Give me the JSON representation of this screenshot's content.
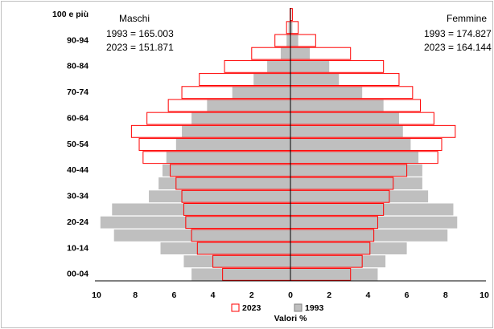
{
  "chart_data": {
    "type": "pyramid",
    "categories": [
      "00-04",
      null,
      "10-14",
      null,
      "20-24",
      null,
      "30-34",
      null,
      "40-44",
      null,
      "50-54",
      null,
      "60-64",
      null,
      "70-74",
      null,
      "80-84",
      null,
      "90-94",
      null,
      "100 e più"
    ],
    "xlim": [
      0,
      10
    ],
    "xticks": [
      0,
      2,
      4,
      6,
      8,
      10
    ],
    "xlabel": "Valori %",
    "sides": [
      {
        "label": "Maschi",
        "notes": [
          "1993 = 165.003",
          "2023 = 151.871"
        ]
      },
      {
        "label": "Femmine",
        "notes": [
          "1993 = 174.827",
          "2023 = 164.144"
        ]
      }
    ],
    "series": [
      {
        "name": "2023",
        "color": "#ff0000",
        "filled": false,
        "left": [
          3.5,
          4.0,
          4.8,
          5.1,
          5.4,
          5.5,
          5.6,
          5.9,
          6.2,
          7.6,
          7.8,
          8.2,
          7.4,
          6.3,
          5.6,
          4.7,
          3.4,
          2.0,
          0.8,
          0.2,
          0.02
        ],
        "right": [
          3.1,
          3.7,
          4.1,
          4.3,
          4.5,
          4.8,
          5.1,
          5.3,
          6.0,
          7.6,
          7.8,
          8.5,
          7.4,
          6.7,
          6.3,
          5.6,
          4.8,
          3.1,
          1.3,
          0.4,
          0.1
        ]
      },
      {
        "name": "1993",
        "color": "#bfbfbf",
        "filled": true,
        "left": [
          5.1,
          5.5,
          6.7,
          9.1,
          9.8,
          9.2,
          7.3,
          6.8,
          6.6,
          6.4,
          5.9,
          5.6,
          5.1,
          4.3,
          3.0,
          1.9,
          1.2,
          0.5,
          0.2,
          0.1,
          0.02
        ],
        "right": [
          4.5,
          4.9,
          6.0,
          8.1,
          8.6,
          8.4,
          7.1,
          6.8,
          6.8,
          6.6,
          6.2,
          5.8,
          5.6,
          4.8,
          3.7,
          2.5,
          2.0,
          1.0,
          0.4,
          0.1,
          0.02
        ]
      }
    ]
  }
}
